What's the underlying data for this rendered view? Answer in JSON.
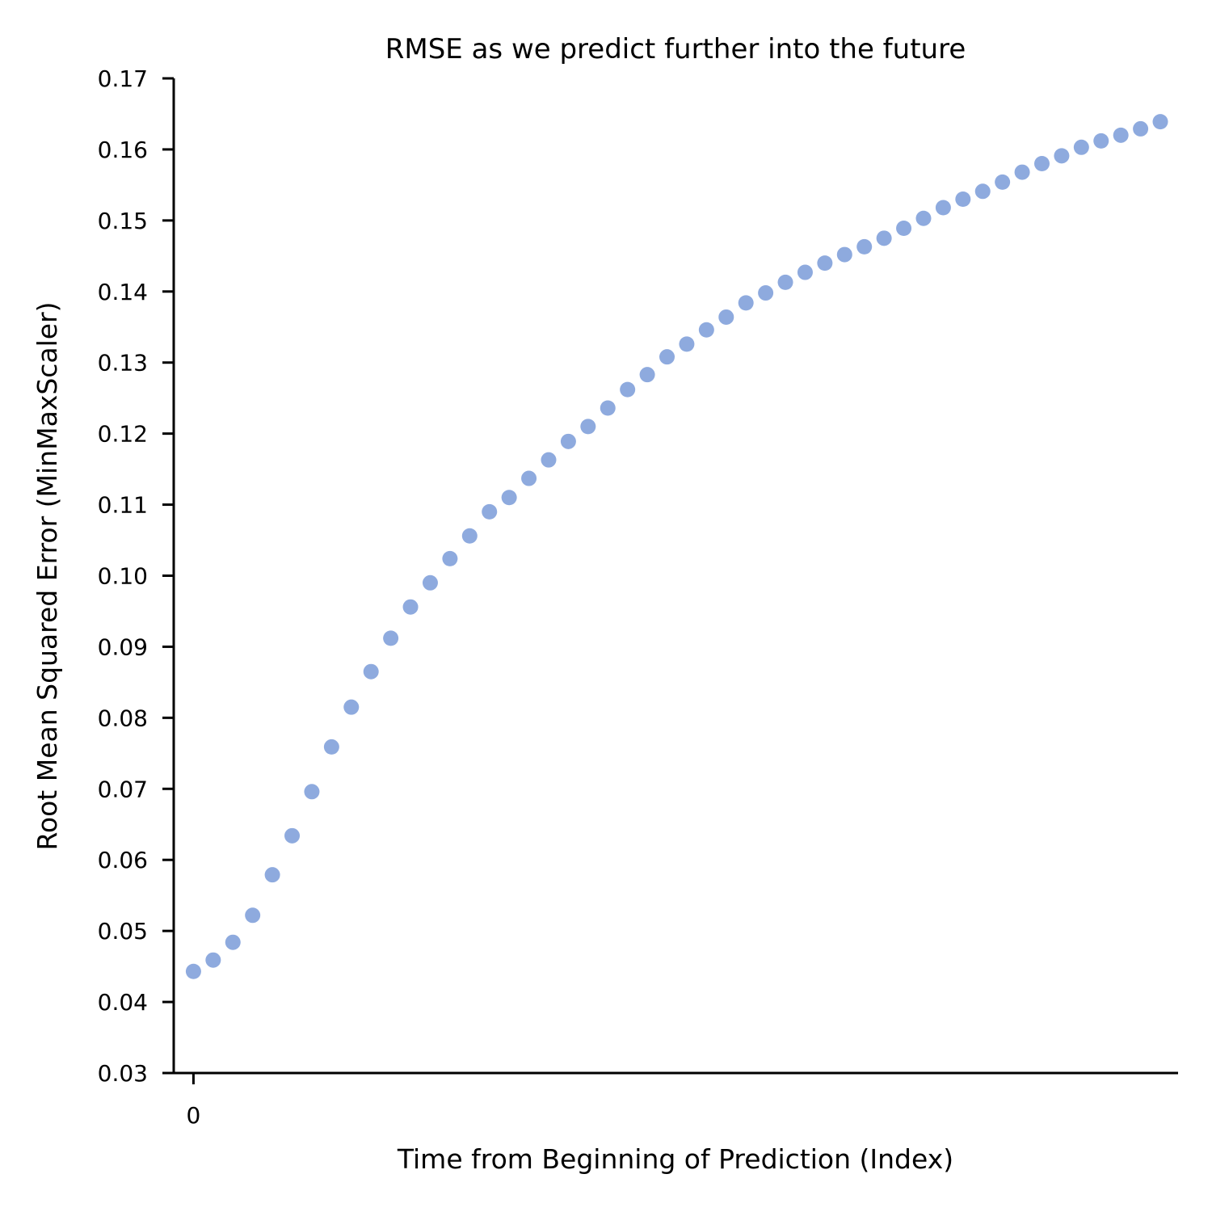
{
  "chart_data": {
    "type": "scatter",
    "title": "RMSE as we predict further into the future",
    "xlabel": "Time from Beginning of Prediction (Index)",
    "ylabel": "Root Mean Squared Error (MinMaxScaler)",
    "ylim": [
      0.03,
      0.17
    ],
    "xlim": [
      -1,
      49.9
    ],
    "grid": false,
    "y_ticks": [
      "0.03",
      "0.04",
      "0.05",
      "0.06",
      "0.07",
      "0.08",
      "0.09",
      "0.10",
      "0.11",
      "0.12",
      "0.13",
      "0.14",
      "0.15",
      "0.16",
      "0.17"
    ],
    "x_ticks": [
      "0"
    ],
    "marker_color": "#8eaade",
    "series": [
      {
        "x": [
          0,
          1,
          2,
          3,
          4,
          5,
          6,
          7,
          8,
          9,
          10,
          11,
          12,
          13,
          14,
          15,
          16,
          17,
          18,
          19,
          20,
          21,
          22,
          23,
          24,
          25,
          26,
          27,
          28,
          29,
          30,
          31,
          32,
          33,
          34,
          35,
          36,
          37,
          38,
          39,
          40,
          41,
          42,
          43,
          44,
          45,
          46,
          47,
          48,
          49
        ],
        "values": [
          0.0443,
          0.0459,
          0.0484,
          0.0522,
          0.0579,
          0.0634,
          0.0696,
          0.0759,
          0.0815,
          0.0865,
          0.0912,
          0.0956,
          0.099,
          0.1024,
          0.1056,
          0.109,
          0.111,
          0.1137,
          0.1163,
          0.1189,
          0.121,
          0.1236,
          0.1262,
          0.1283,
          0.1308,
          0.1326,
          0.1346,
          0.1364,
          0.1384,
          0.1398,
          0.1413,
          0.1427,
          0.144,
          0.1452,
          0.1463,
          0.1475,
          0.1489,
          0.1503,
          0.1518,
          0.153,
          0.1541,
          0.1554,
          0.1568,
          0.158,
          0.1591,
          0.1603,
          0.1612,
          0.162,
          0.1629,
          0.1639
        ]
      }
    ]
  }
}
